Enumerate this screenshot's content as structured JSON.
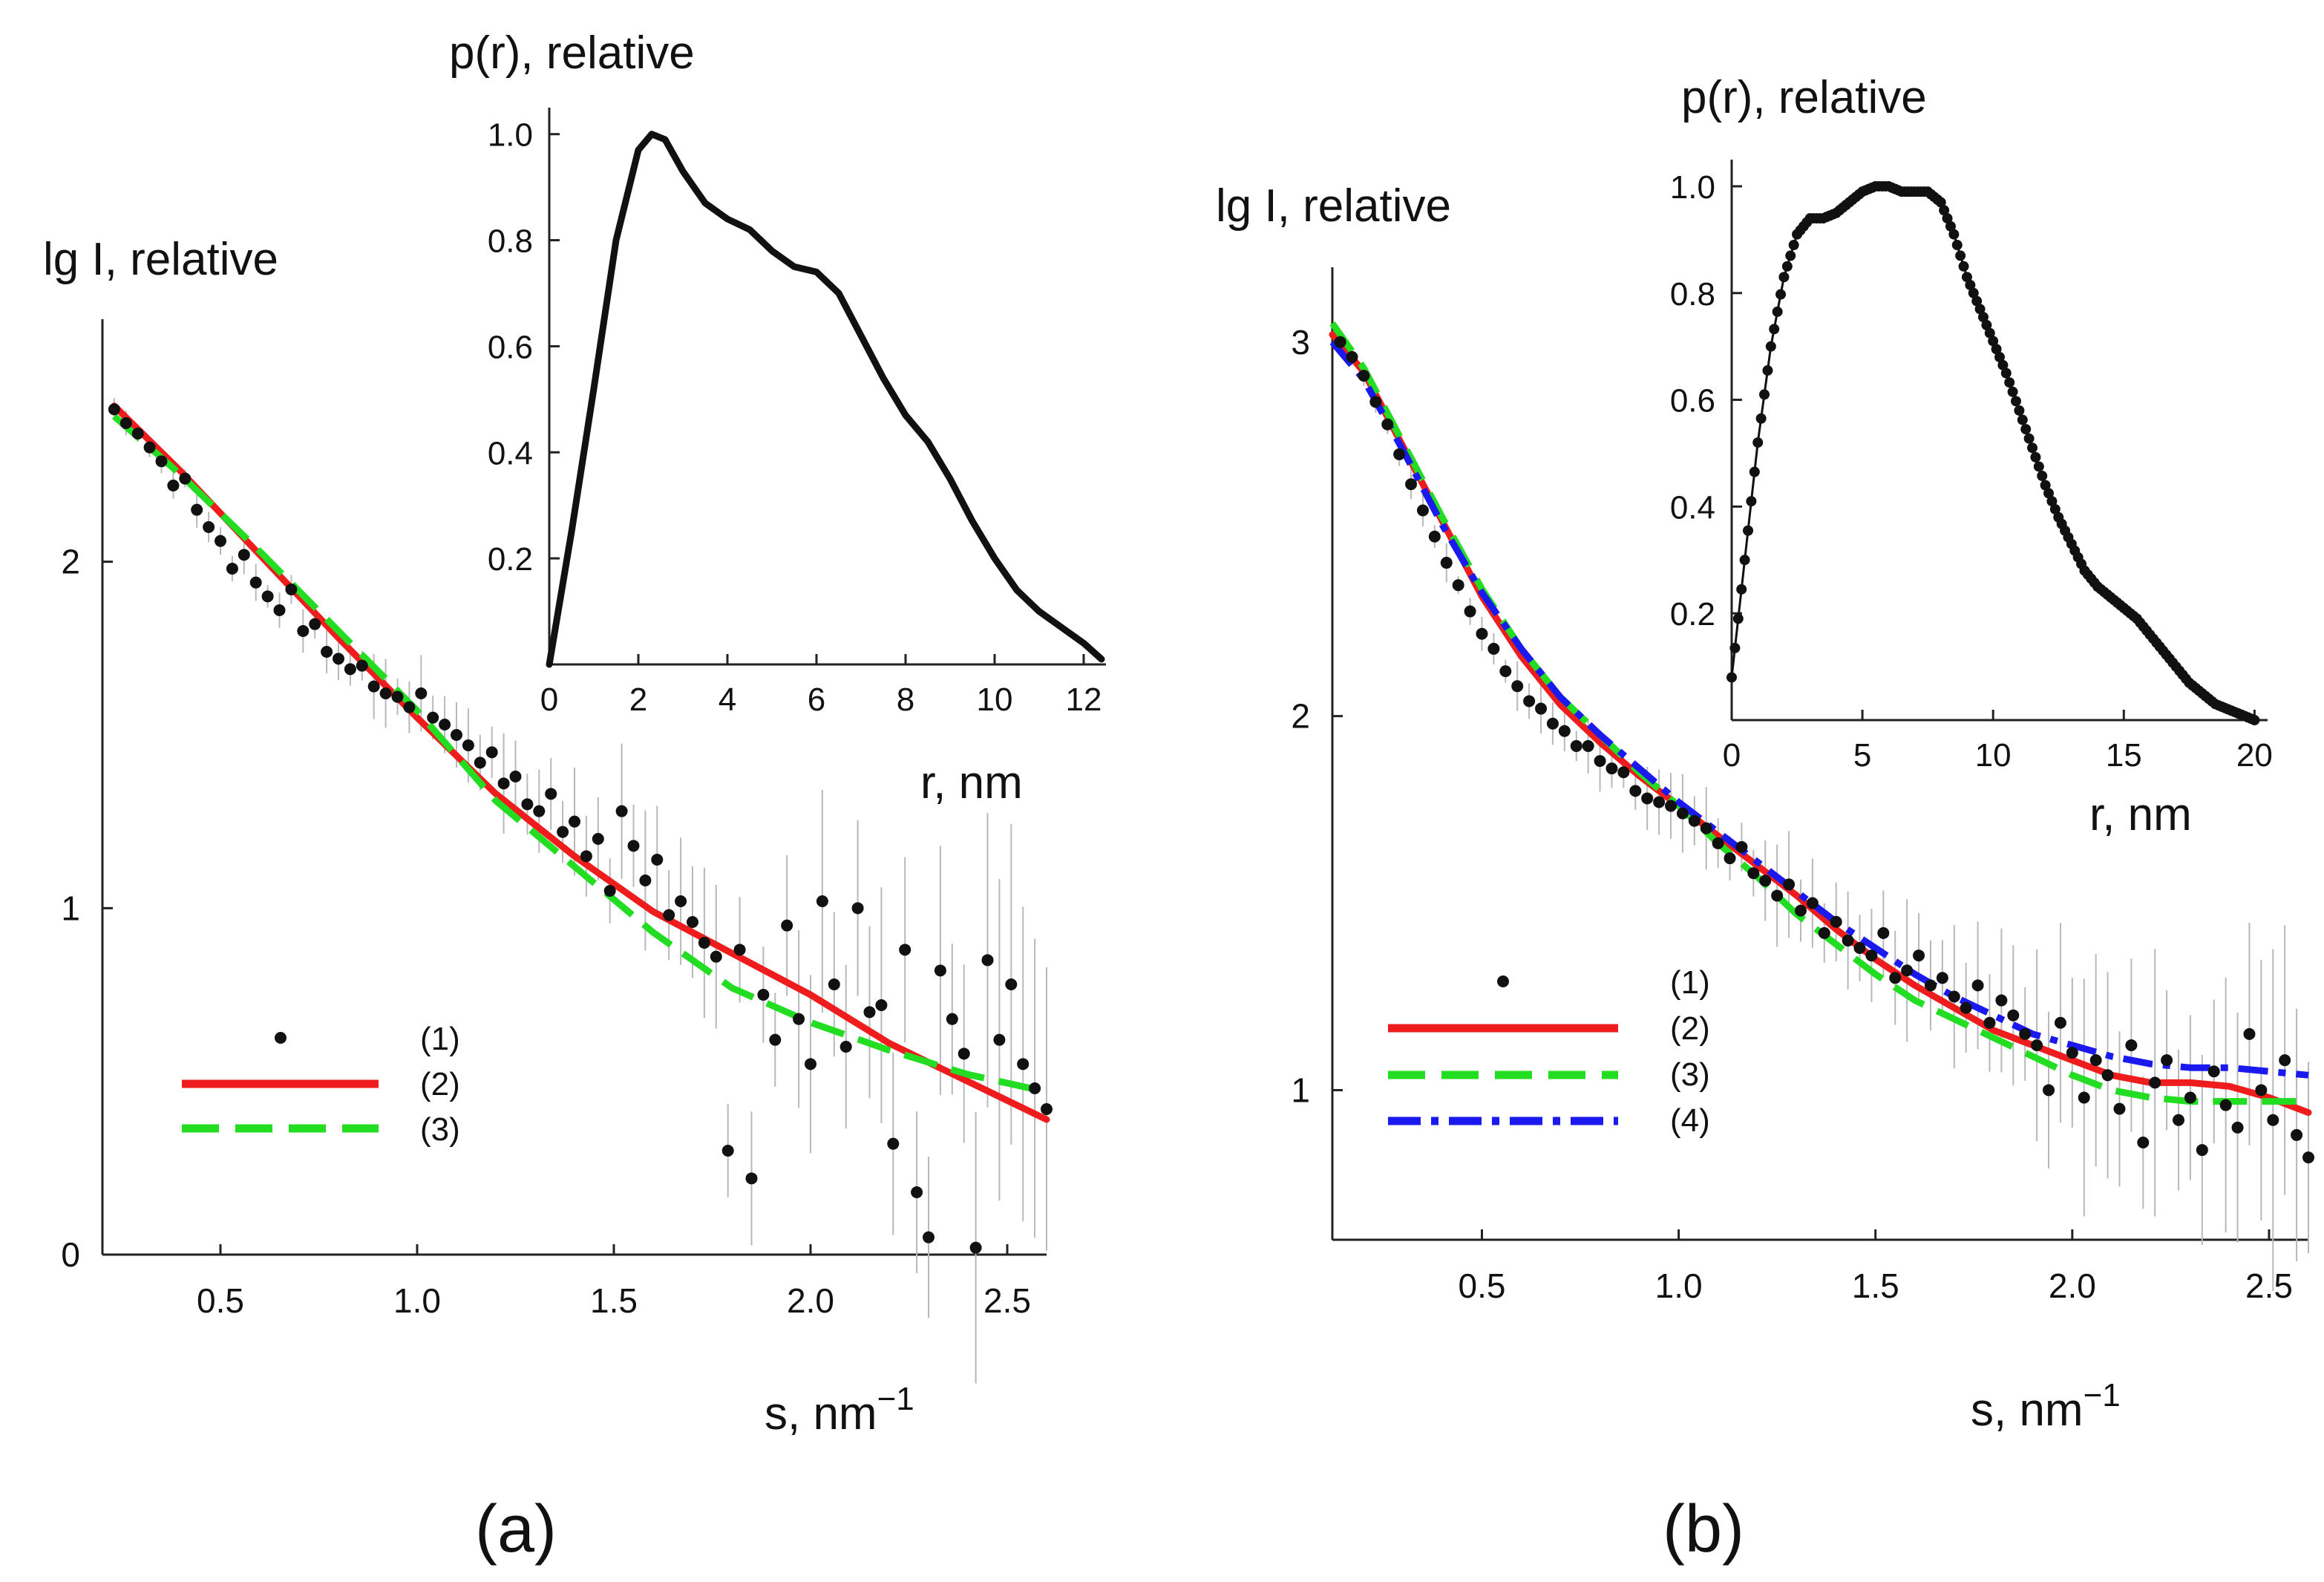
{
  "figure": {
    "panel_labels": [
      "(a)",
      "(b)"
    ]
  },
  "colors": {
    "data": "#111111",
    "errorbar": "#b8b8b8",
    "fit2": "#ee1c1c",
    "fit3": "#22dd22",
    "fit4": "#1a1aee"
  },
  "chart_data": [
    {
      "id": "a_main",
      "type": "scatter",
      "title": "",
      "xlabel": "s, nm",
      "xlabel_superscript": "−1",
      "ylabel": "lg I, relative",
      "xlim": [
        0.2,
        2.6
      ],
      "ylim": [
        0,
        2.7
      ],
      "xticks": [
        0.5,
        1.0,
        1.5,
        2.0,
        2.5
      ],
      "xtick_labels": [
        "0.5",
        "1.0",
        "1.5",
        "2.0",
        "2.5"
      ],
      "yticks": [
        0,
        1,
        2
      ],
      "ytick_labels": [
        "0",
        "1",
        "2"
      ],
      "legend": {
        "position": "lower-left",
        "entries": [
          "(1)",
          "(2)",
          "(3)"
        ]
      },
      "series": [
        {
          "name": "(1)",
          "style": "points",
          "note": "experimental data with error bars",
          "x": [
            0.23,
            0.26,
            0.29,
            0.32,
            0.35,
            0.38,
            0.41,
            0.44,
            0.47,
            0.5,
            0.53,
            0.56,
            0.59,
            0.62,
            0.65,
            0.68,
            0.71,
            0.74,
            0.77,
            0.8,
            0.83,
            0.86,
            0.89,
            0.92,
            0.95,
            0.98,
            1.01,
            1.04,
            1.07,
            1.1,
            1.13,
            1.16,
            1.19,
            1.22,
            1.25,
            1.28,
            1.31,
            1.34,
            1.37,
            1.4,
            1.43,
            1.46,
            1.49,
            1.52,
            1.55,
            1.58,
            1.61,
            1.64,
            1.67,
            1.7,
            1.73,
            1.76,
            1.79,
            1.82,
            1.85,
            1.88,
            1.91,
            1.94,
            1.97,
            2.0,
            2.03,
            2.06,
            2.09,
            2.12,
            2.15,
            2.18,
            2.21,
            2.24,
            2.27,
            2.3,
            2.33,
            2.36,
            2.39,
            2.42,
            2.45,
            2.48,
            2.51,
            2.54,
            2.57,
            2.6
          ],
          "y": [
            2.44,
            2.4,
            2.37,
            2.33,
            2.29,
            2.22,
            2.24,
            2.15,
            2.1,
            2.06,
            1.98,
            2.02,
            1.94,
            1.9,
            1.86,
            1.92,
            1.8,
            1.82,
            1.74,
            1.72,
            1.69,
            1.7,
            1.64,
            1.62,
            1.61,
            1.58,
            1.62,
            1.55,
            1.53,
            1.5,
            1.47,
            1.42,
            1.45,
            1.36,
            1.38,
            1.3,
            1.28,
            1.33,
            1.22,
            1.25,
            1.15,
            1.2,
            1.05,
            1.28,
            1.18,
            1.08,
            1.14,
            0.98,
            1.02,
            0.96,
            0.9,
            0.86,
            0.3,
            0.88,
            0.22,
            0.75,
            0.62,
            0.95,
            0.68,
            0.55,
            1.02,
            0.78,
            0.6,
            1.0,
            0.7,
            0.72,
            0.32,
            0.88,
            0.18,
            0.05,
            0.82,
            0.68,
            0.58,
            0.02,
            0.85,
            0.62,
            0.78,
            0.55,
            0.48,
            0.42
          ]
        },
        {
          "name": "(2)",
          "style": "solid",
          "x": [
            0.23,
            0.4,
            0.6,
            0.8,
            1.0,
            1.2,
            1.4,
            1.6,
            1.8,
            2.0,
            2.2,
            2.4,
            2.6
          ],
          "y": [
            2.45,
            2.26,
            2.02,
            1.78,
            1.55,
            1.33,
            1.15,
            0.99,
            0.87,
            0.75,
            0.61,
            0.5,
            0.39
          ]
        },
        {
          "name": "(3)",
          "style": "dashed",
          "x": [
            0.23,
            0.4,
            0.6,
            0.8,
            1.0,
            1.2,
            1.4,
            1.6,
            1.8,
            2.0,
            2.2,
            2.4,
            2.6
          ],
          "y": [
            2.42,
            2.25,
            2.03,
            1.8,
            1.57,
            1.31,
            1.12,
            0.93,
            0.77,
            0.67,
            0.59,
            0.52,
            0.47
          ]
        }
      ]
    },
    {
      "id": "a_inset",
      "type": "line",
      "title": "p(r), relative",
      "xlabel": "r, nm",
      "ylabel": "p(r), relative",
      "xlim": [
        0,
        12.5
      ],
      "ylim": [
        0,
        1.05
      ],
      "xticks": [
        0,
        2,
        4,
        6,
        8,
        10,
        12
      ],
      "xtick_labels": [
        "0",
        "2",
        "4",
        "6",
        "8",
        "10",
        "12"
      ],
      "yticks": [
        0.2,
        0.4,
        0.6,
        0.8,
        1.0
      ],
      "ytick_labels": [
        "0.2",
        "0.4",
        "0.6",
        "0.8",
        "1.0"
      ],
      "series": [
        {
          "name": "p(r)",
          "style": "solid",
          "x": [
            0,
            0.5,
            1,
            1.5,
            2,
            2.3,
            2.6,
            3,
            3.5,
            4,
            4.5,
            5,
            5.5,
            6,
            6.5,
            7,
            7.5,
            8,
            8.5,
            9,
            9.5,
            10,
            10.5,
            11,
            11.5,
            12,
            12.4
          ],
          "y": [
            0,
            0.25,
            0.52,
            0.8,
            0.97,
            1.0,
            0.99,
            0.93,
            0.87,
            0.84,
            0.82,
            0.78,
            0.75,
            0.74,
            0.7,
            0.62,
            0.54,
            0.47,
            0.42,
            0.35,
            0.27,
            0.2,
            0.14,
            0.1,
            0.07,
            0.04,
            0.01
          ]
        }
      ]
    },
    {
      "id": "b_main",
      "type": "scatter",
      "title": "",
      "xlabel": "s, nm",
      "xlabel_superscript": "−1",
      "ylabel": "lg I, relative",
      "xlim": [
        0.12,
        2.6
      ],
      "ylim": [
        0.6,
        3.2
      ],
      "xticks": [
        0.5,
        1.0,
        1.5,
        2.0,
        2.5
      ],
      "xtick_labels": [
        "0.5",
        "1.0",
        "1.5",
        "2.0",
        "2.5"
      ],
      "yticks": [
        1,
        2,
        3
      ],
      "ytick_labels": [
        "1",
        "2",
        "3"
      ],
      "legend": {
        "position": "lower-left",
        "entries": [
          "(1)",
          "(2)",
          "(3)",
          "(4)"
        ]
      },
      "series": [
        {
          "name": "(1)",
          "style": "points",
          "note": "experimental data with error bars",
          "x": [
            0.14,
            0.17,
            0.2,
            0.23,
            0.26,
            0.29,
            0.32,
            0.35,
            0.38,
            0.41,
            0.44,
            0.47,
            0.5,
            0.53,
            0.56,
            0.59,
            0.62,
            0.65,
            0.68,
            0.71,
            0.74,
            0.77,
            0.8,
            0.83,
            0.86,
            0.89,
            0.92,
            0.95,
            0.98,
            1.01,
            1.04,
            1.07,
            1.1,
            1.13,
            1.16,
            1.19,
            1.22,
            1.25,
            1.28,
            1.31,
            1.34,
            1.37,
            1.4,
            1.43,
            1.46,
            1.49,
            1.52,
            1.55,
            1.58,
            1.61,
            1.64,
            1.67,
            1.7,
            1.73,
            1.76,
            1.79,
            1.82,
            1.85,
            1.88,
            1.91,
            1.94,
            1.97,
            2.0,
            2.03,
            2.06,
            2.09,
            2.12,
            2.15,
            2.18,
            2.21,
            2.24,
            2.27,
            2.3,
            2.33,
            2.36,
            2.39,
            2.42,
            2.45,
            2.48,
            2.51,
            2.54,
            2.57,
            2.6
          ],
          "y": [
            3.0,
            2.96,
            2.91,
            2.84,
            2.78,
            2.7,
            2.62,
            2.55,
            2.48,
            2.41,
            2.35,
            2.28,
            2.22,
            2.18,
            2.12,
            2.08,
            2.04,
            2.02,
            1.98,
            1.96,
            1.92,
            1.92,
            1.88,
            1.86,
            1.85,
            1.8,
            1.78,
            1.77,
            1.76,
            1.74,
            1.72,
            1.7,
            1.66,
            1.62,
            1.65,
            1.58,
            1.56,
            1.52,
            1.55,
            1.48,
            1.5,
            1.42,
            1.45,
            1.4,
            1.38,
            1.36,
            1.42,
            1.3,
            1.32,
            1.36,
            1.28,
            1.3,
            1.25,
            1.22,
            1.28,
            1.18,
            1.24,
            1.2,
            1.15,
            1.12,
            1.0,
            1.18,
            1.1,
            0.98,
            1.08,
            1.04,
            0.95,
            1.12,
            0.86,
            1.02,
            1.08,
            0.92,
            0.98,
            0.84,
            1.05,
            0.96,
            0.9,
            1.15,
            1.0,
            0.92,
            1.08,
            0.88,
            0.82
          ]
        },
        {
          "name": "(2)",
          "style": "solid",
          "x": [
            0.12,
            0.2,
            0.3,
            0.4,
            0.5,
            0.6,
            0.7,
            0.8,
            0.9,
            1.0,
            1.1,
            1.2,
            1.3,
            1.4,
            1.5,
            1.6,
            1.7,
            1.8,
            1.9,
            2.0,
            2.1,
            2.2,
            2.3,
            2.4,
            2.5,
            2.6
          ],
          "y": [
            3.02,
            2.92,
            2.72,
            2.52,
            2.32,
            2.16,
            2.03,
            1.93,
            1.84,
            1.76,
            1.68,
            1.6,
            1.52,
            1.43,
            1.35,
            1.28,
            1.22,
            1.16,
            1.12,
            1.08,
            1.04,
            1.02,
            1.02,
            1.01,
            0.98,
            0.94
          ]
        },
        {
          "name": "(3)",
          "style": "dashed",
          "x": [
            0.12,
            0.2,
            0.3,
            0.4,
            0.5,
            0.6,
            0.7,
            0.8,
            0.9,
            1.0,
            1.1,
            1.2,
            1.3,
            1.4,
            1.5,
            1.6,
            1.7,
            1.8,
            1.9,
            2.0,
            2.1,
            2.2,
            2.3,
            2.4,
            2.5,
            2.6
          ],
          "y": [
            3.05,
            2.93,
            2.73,
            2.53,
            2.34,
            2.18,
            2.05,
            1.95,
            1.85,
            1.76,
            1.66,
            1.57,
            1.47,
            1.39,
            1.31,
            1.24,
            1.19,
            1.14,
            1.09,
            1.04,
            1.0,
            0.98,
            0.97,
            0.97,
            0.97,
            0.97
          ]
        },
        {
          "name": "(4)",
          "style": "dashdot",
          "x": [
            0.12,
            0.2,
            0.3,
            0.4,
            0.5,
            0.6,
            0.7,
            0.8,
            0.9,
            1.0,
            1.1,
            1.2,
            1.3,
            1.4,
            1.5,
            1.6,
            1.7,
            1.8,
            1.9,
            2.0,
            2.1,
            2.2,
            2.3,
            2.4,
            2.5,
            2.6
          ],
          "y": [
            3.0,
            2.9,
            2.71,
            2.51,
            2.33,
            2.18,
            2.05,
            1.95,
            1.86,
            1.77,
            1.69,
            1.61,
            1.53,
            1.45,
            1.38,
            1.31,
            1.25,
            1.2,
            1.15,
            1.12,
            1.09,
            1.07,
            1.06,
            1.06,
            1.05,
            1.04
          ]
        }
      ]
    },
    {
      "id": "b_inset",
      "type": "scatter",
      "title": "p(r), relative",
      "xlabel": "r, nm",
      "ylabel": "p(r), relative",
      "xlim": [
        0,
        20.5
      ],
      "ylim": [
        0,
        1.05
      ],
      "xticks": [
        0,
        5,
        10,
        15,
        20
      ],
      "xtick_labels": [
        "0",
        "5",
        "10",
        "15",
        "20"
      ],
      "yticks": [
        0.2,
        0.4,
        0.6,
        0.8,
        1.0
      ],
      "ytick_labels": [
        "0.2",
        "0.4",
        "0.6",
        "0.8",
        "1.0"
      ],
      "series": [
        {
          "name": "p(r)",
          "style": "line-markers",
          "x": [
            0,
            0.5,
            1,
            1.5,
            2,
            2.5,
            3,
            3.5,
            4,
            4.5,
            5,
            5.5,
            6,
            6.5,
            7,
            7.5,
            8,
            8.5,
            9,
            9.5,
            10,
            10.5,
            11,
            11.5,
            12,
            12.5,
            13,
            13.5,
            14,
            14.5,
            15,
            15.5,
            16,
            16.5,
            17,
            17.5,
            18,
            18.5,
            19,
            19.5,
            20
          ],
          "y": [
            0.08,
            0.3,
            0.52,
            0.7,
            0.83,
            0.91,
            0.94,
            0.94,
            0.95,
            0.97,
            0.99,
            1.0,
            1.0,
            0.99,
            0.99,
            0.99,
            0.97,
            0.91,
            0.83,
            0.77,
            0.71,
            0.65,
            0.58,
            0.51,
            0.44,
            0.38,
            0.33,
            0.28,
            0.25,
            0.23,
            0.21,
            0.19,
            0.16,
            0.13,
            0.1,
            0.07,
            0.05,
            0.03,
            0.02,
            0.01,
            0.0
          ]
        }
      ]
    }
  ]
}
